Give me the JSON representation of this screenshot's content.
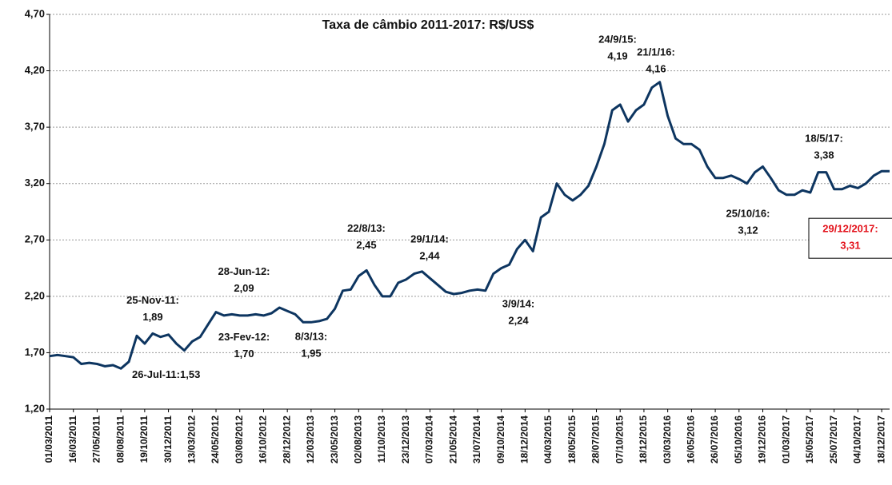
{
  "chart_data": {
    "type": "line",
    "title": "Taxa de câmbio 2011-2017: R$/US$",
    "categories": [
      "01/03/2011",
      null,
      null,
      "16/03/2011",
      null,
      null,
      "27/05/2011",
      null,
      null,
      "08/08/2011",
      null,
      null,
      "19/10/2011",
      null,
      null,
      "30/12/2011",
      null,
      null,
      "13/03/2012",
      null,
      null,
      "24/05/2012",
      null,
      null,
      "03/08/2012",
      null,
      null,
      "16/10/2012",
      null,
      null,
      "28/12/2012",
      null,
      null,
      "12/03/2013",
      null,
      null,
      "23/05/2013",
      null,
      null,
      "02/08/2013",
      null,
      null,
      "11/10/2013",
      null,
      null,
      "23/12/2013",
      null,
      null,
      "07/03/2014",
      null,
      null,
      "21/05/2014",
      null,
      null,
      "31/07/2014",
      null,
      null,
      "09/10/2014",
      null,
      null,
      "18/12/2014",
      null,
      null,
      "04/03/2015",
      null,
      null,
      "18/05/2015",
      null,
      null,
      "28/07/2015",
      null,
      null,
      "07/10/2015",
      null,
      null,
      "18/12/2015",
      null,
      null,
      "03/03/2016",
      null,
      null,
      "16/05/2016",
      null,
      null,
      "26/07/2016",
      null,
      null,
      "05/10/2016",
      null,
      null,
      "19/12/2016",
      null,
      null,
      "01/03/2017",
      null,
      null,
      "15/05/2017",
      null,
      null,
      "25/07/2017",
      null,
      null,
      "04/10/2017",
      null,
      null,
      "18/12/2017",
      null
    ],
    "series": [
      {
        "name": "R$/US$",
        "color": "#0d3560",
        "values": [
          1.67,
          1.68,
          1.67,
          1.66,
          1.6,
          1.61,
          1.6,
          1.58,
          1.59,
          1.56,
          1.62,
          1.85,
          1.78,
          1.87,
          1.84,
          1.86,
          1.78,
          1.72,
          1.8,
          1.84,
          1.95,
          2.06,
          2.03,
          2.04,
          2.03,
          2.03,
          2.04,
          2.03,
          2.05,
          2.1,
          2.07,
          2.04,
          1.97,
          1.97,
          1.98,
          2.0,
          2.09,
          2.25,
          2.26,
          2.38,
          2.43,
          2.3,
          2.2,
          2.2,
          2.32,
          2.35,
          2.4,
          2.42,
          2.36,
          2.3,
          2.24,
          2.22,
          2.23,
          2.25,
          2.26,
          2.25,
          2.4,
          2.45,
          2.48,
          2.62,
          2.7,
          2.6,
          2.9,
          2.95,
          3.2,
          3.1,
          3.05,
          3.1,
          3.18,
          3.35,
          3.55,
          3.85,
          3.9,
          3.75,
          3.85,
          3.9,
          4.05,
          4.1,
          3.8,
          3.6,
          3.55,
          3.55,
          3.5,
          3.35,
          3.25,
          3.25,
          3.27,
          3.24,
          3.2,
          3.3,
          3.35,
          3.25,
          3.14,
          3.1,
          3.1,
          3.14,
          3.12,
          3.3,
          3.3,
          3.15,
          3.15,
          3.18,
          3.16,
          3.2,
          3.27,
          3.31,
          3.31
        ]
      }
    ],
    "ylim": [
      1.2,
      4.7
    ],
    "yticks": [
      {
        "value": 1.2,
        "label": "1,20"
      },
      {
        "value": 1.7,
        "label": "1,70"
      },
      {
        "value": 2.2,
        "label": "2,20"
      },
      {
        "value": 2.7,
        "label": "2,70"
      },
      {
        "value": 3.2,
        "label": "3,20"
      },
      {
        "value": 3.7,
        "label": "3,70"
      },
      {
        "value": 4.2,
        "label": "4,20"
      },
      {
        "value": 4.7,
        "label": "4,70"
      }
    ],
    "grid": true,
    "annotations": [
      {
        "text": "24/9/15:",
        "value": 4.19,
        "label": "4,19"
      },
      {
        "text": "21/1/16:",
        "value": 4.16,
        "label": "4,16"
      },
      {
        "text": "18/5/17:",
        "value": 3.38,
        "label": "3,38"
      },
      {
        "text": "25/10/16:",
        "value": 3.12,
        "label": "3,12"
      },
      {
        "text": "29/12/2017:",
        "value": 3.31,
        "label": "3,31"
      },
      {
        "text": "22/8/13:",
        "value": 2.45,
        "label": "2,45"
      },
      {
        "text": "29/1/14:",
        "value": 2.44,
        "label": "2,44"
      },
      {
        "text": "3/9/14:",
        "value": 2.24,
        "label": "2,24"
      },
      {
        "text": "28-Jun-12:",
        "value": 2.09,
        "label": "2,09"
      },
      {
        "text": "25-Nov-11:",
        "value": 1.89,
        "label": "1,89"
      },
      {
        "text": "23-Fev-12:",
        "value": 1.7,
        "label": "1,70"
      },
      {
        "text": "8/3/13:",
        "value": 1.95,
        "label": "1,95"
      },
      {
        "text": "26-Jul-11:",
        "value": 1.53,
        "label": "1,53"
      }
    ]
  }
}
